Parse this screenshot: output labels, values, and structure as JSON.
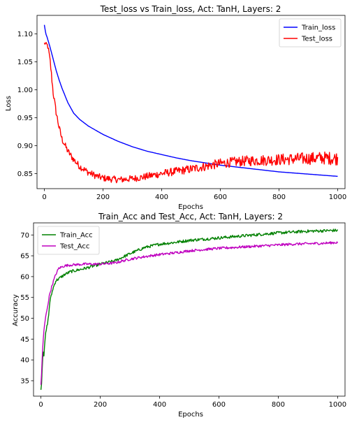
{
  "colors": {
    "train": "#0000ff",
    "test": "#ff0000",
    "train_acc": "#008000",
    "test_acc": "#bf00bf"
  },
  "chart_data": [
    {
      "type": "line",
      "title": "Test_loss vs Train_loss, Act: TanH, Layers: 2",
      "xlabel": "Epochs",
      "ylabel": "Loss",
      "xlim": [
        -25,
        1025
      ],
      "ylim": [
        0.823,
        1.133
      ],
      "xticks": [
        0,
        200,
        400,
        600,
        800,
        1000
      ],
      "yticks": [
        0.85,
        0.9,
        0.95,
        1.0,
        1.05,
        1.1
      ],
      "ytick_labels": [
        "0.85",
        "0.90",
        "0.95",
        "1.00",
        "1.05",
        "1.10"
      ],
      "grid": false,
      "legend": "top-right",
      "series": [
        {
          "name": "Train_loss",
          "color": "#0000ff",
          "x": [
            0,
            5,
            10,
            20,
            30,
            40,
            50,
            60,
            80,
            100,
            120,
            150,
            200,
            250,
            300,
            350,
            400,
            450,
            500,
            550,
            600,
            650,
            700,
            750,
            800,
            850,
            900,
            950,
            1000
          ],
          "values": [
            1.116,
            1.1,
            1.093,
            1.075,
            1.055,
            1.035,
            1.018,
            1.003,
            0.977,
            0.958,
            0.947,
            0.935,
            0.92,
            0.908,
            0.898,
            0.89,
            0.884,
            0.878,
            0.873,
            0.869,
            0.865,
            0.862,
            0.859,
            0.856,
            0.853,
            0.851,
            0.849,
            0.847,
            0.845
          ]
        },
        {
          "name": "Test_loss",
          "color": "#ff0000",
          "noise": 0.006,
          "x": [
            0,
            5,
            10,
            15,
            20,
            30,
            40,
            50,
            60,
            80,
            100,
            120,
            150,
            180,
            200,
            230,
            260,
            280,
            300,
            330,
            360,
            400,
            450,
            500,
            550,
            600,
            650,
            700,
            750,
            800,
            850,
            900,
            950,
            1000
          ],
          "values": [
            1.083,
            1.082,
            1.08,
            1.07,
            1.05,
            0.995,
            0.96,
            0.933,
            0.912,
            0.89,
            0.875,
            0.863,
            0.852,
            0.845,
            0.842,
            0.84,
            0.839,
            0.84,
            0.841,
            0.843,
            0.846,
            0.85,
            0.854,
            0.858,
            0.863,
            0.868,
            0.871,
            0.873,
            0.874,
            0.875,
            0.876,
            0.877,
            0.878,
            0.877
          ]
        }
      ]
    },
    {
      "type": "line",
      "title": "Train_Acc and Test_Acc, Act: TanH, Layers: 2",
      "xlabel": "Epochs",
      "ylabel": "Accuracy",
      "xlim": [
        -25,
        1025
      ],
      "ylim": [
        31.3,
        72.9
      ],
      "xticks": [
        0,
        200,
        400,
        600,
        800,
        1000
      ],
      "yticks": [
        35,
        40,
        45,
        50,
        55,
        60,
        65,
        70
      ],
      "ytick_labels": [
        "35",
        "40",
        "45",
        "50",
        "55",
        "60",
        "65",
        "70"
      ],
      "grid": false,
      "legend": "top-left",
      "series": [
        {
          "name": "Train_Acc",
          "color": "#008000",
          "noise": 0.35,
          "x": [
            0,
            3,
            5,
            8,
            10,
            15,
            20,
            25,
            30,
            40,
            50,
            60,
            80,
            100,
            150,
            200,
            250,
            300,
            350,
            400,
            450,
            500,
            550,
            600,
            650,
            700,
            750,
            800,
            850,
            900,
            950,
            1000
          ],
          "values": [
            33.0,
            35.0,
            40.0,
            42.0,
            41.0,
            46.0,
            48.0,
            50.0,
            54.0,
            57.0,
            59.0,
            59.5,
            60.5,
            61.2,
            62.0,
            63.0,
            63.8,
            65.5,
            67.0,
            67.8,
            68.2,
            68.7,
            69.0,
            69.3,
            69.6,
            69.9,
            70.2,
            70.5,
            70.7,
            70.9,
            71.0,
            71.1
          ]
        },
        {
          "name": "Test_Acc",
          "color": "#bf00bf",
          "noise": 0.3,
          "x": [
            0,
            3,
            5,
            8,
            10,
            15,
            20,
            25,
            30,
            40,
            50,
            60,
            80,
            100,
            150,
            200,
            250,
            300,
            350,
            400,
            450,
            500,
            550,
            600,
            650,
            700,
            750,
            800,
            850,
            900,
            950,
            1000
          ],
          "values": [
            34.0,
            38.0,
            42.0,
            45.0,
            47.0,
            50.0,
            52.0,
            54.0,
            56.0,
            58.5,
            60.5,
            62.0,
            62.6,
            62.8,
            63.0,
            63.0,
            63.3,
            64.2,
            64.8,
            65.3,
            65.7,
            66.2,
            66.5,
            66.8,
            67.0,
            67.2,
            67.4,
            67.6,
            67.8,
            67.9,
            68.0,
            68.2
          ]
        }
      ]
    }
  ]
}
